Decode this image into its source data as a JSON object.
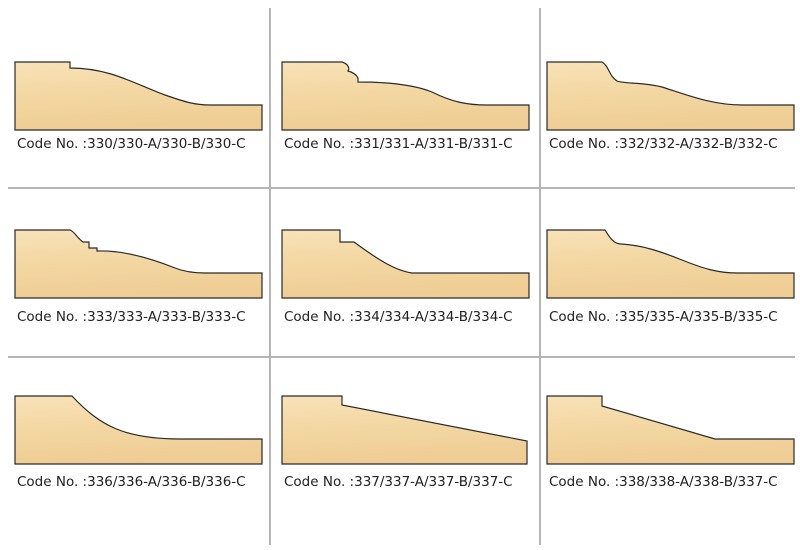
{
  "items": [
    {
      "code": "Code No. :330/330-A/330-B/330-C"
    },
    {
      "code": "Code No. :331/331-A/331-B/331-C"
    },
    {
      "code": "Code No. :332/332-A/332-B/332-C"
    },
    {
      "code": "Code No. :333/333-A/333-B/333-C"
    },
    {
      "code": "Code No. :334/334-A/334-B/334-C"
    },
    {
      "code": "Code No. :335/335-A/335-B/335-C"
    },
    {
      "code": "Code No. :336/336-A/336-B/336-C"
    },
    {
      "code": "Code No. :337/337-A/337-B/337-C"
    },
    {
      "code": "Code No. :338/338-A/338-B/337-C"
    }
  ]
}
